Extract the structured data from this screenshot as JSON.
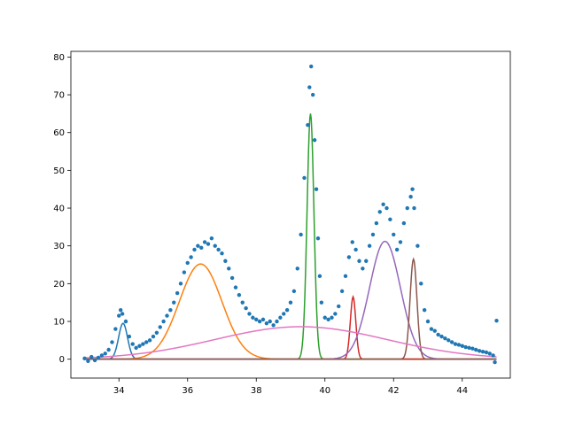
{
  "chart_data": {
    "type": "scatter",
    "title": "",
    "xlabel": "",
    "ylabel": "",
    "xlim": [
      32.6,
      45.4
    ],
    "ylim": [
      -5,
      81.5
    ],
    "xticks": [
      34,
      36,
      38,
      40,
      42,
      44
    ],
    "yticks": [
      0,
      10,
      20,
      30,
      40,
      50,
      60,
      70,
      80
    ],
    "grid": false,
    "legend": "none",
    "scatter_color": "#1f77b4",
    "scatter_points": [
      [
        33.0,
        0.2
      ],
      [
        33.1,
        -0.5
      ],
      [
        33.2,
        0.6
      ],
      [
        33.3,
        -0.3
      ],
      [
        33.4,
        0.4
      ],
      [
        33.5,
        1.0
      ],
      [
        33.6,
        1.5
      ],
      [
        33.7,
        2.5
      ],
      [
        33.8,
        4.5
      ],
      [
        33.9,
        8.0
      ],
      [
        34.0,
        11.5
      ],
      [
        34.05,
        13.0
      ],
      [
        34.1,
        12.0
      ],
      [
        34.2,
        10.0
      ],
      [
        34.3,
        6.0
      ],
      [
        34.4,
        4.0
      ],
      [
        34.5,
        3.0
      ],
      [
        34.6,
        3.5
      ],
      [
        34.7,
        4.0
      ],
      [
        34.8,
        4.5
      ],
      [
        34.9,
        5.0
      ],
      [
        35.0,
        6.0
      ],
      [
        35.1,
        7.0
      ],
      [
        35.2,
        8.5
      ],
      [
        35.3,
        10.0
      ],
      [
        35.4,
        11.5
      ],
      [
        35.5,
        13.0
      ],
      [
        35.6,
        15.0
      ],
      [
        35.7,
        17.5
      ],
      [
        35.8,
        20.0
      ],
      [
        35.9,
        23.0
      ],
      [
        36.0,
        25.5
      ],
      [
        36.1,
        27.0
      ],
      [
        36.2,
        29.0
      ],
      [
        36.3,
        30.0
      ],
      [
        36.4,
        29.5
      ],
      [
        36.5,
        31.0
      ],
      [
        36.6,
        30.5
      ],
      [
        36.7,
        32.0
      ],
      [
        36.8,
        30.0
      ],
      [
        36.9,
        29.0
      ],
      [
        37.0,
        28.0
      ],
      [
        37.1,
        26.0
      ],
      [
        37.2,
        24.0
      ],
      [
        37.3,
        21.5
      ],
      [
        37.4,
        19.0
      ],
      [
        37.5,
        17.0
      ],
      [
        37.6,
        15.0
      ],
      [
        37.7,
        13.5
      ],
      [
        37.8,
        12.0
      ],
      [
        37.9,
        11.0
      ],
      [
        38.0,
        10.5
      ],
      [
        38.1,
        10.0
      ],
      [
        38.2,
        10.5
      ],
      [
        38.3,
        9.5
      ],
      [
        38.4,
        10.0
      ],
      [
        38.5,
        9.0
      ],
      [
        38.6,
        10.0
      ],
      [
        38.7,
        11.0
      ],
      [
        38.8,
        12.0
      ],
      [
        38.9,
        13.0
      ],
      [
        39.0,
        15.0
      ],
      [
        39.1,
        18.0
      ],
      [
        39.2,
        24.0
      ],
      [
        39.3,
        33.0
      ],
      [
        39.4,
        48.0
      ],
      [
        39.5,
        62.0
      ],
      [
        39.55,
        72.0
      ],
      [
        39.6,
        77.5
      ],
      [
        39.65,
        70.0
      ],
      [
        39.7,
        58.0
      ],
      [
        39.75,
        45.0
      ],
      [
        39.8,
        32.0
      ],
      [
        39.85,
        22.0
      ],
      [
        39.9,
        15.0
      ],
      [
        40.0,
        11.0
      ],
      [
        40.1,
        10.5
      ],
      [
        40.2,
        11.0
      ],
      [
        40.3,
        12.0
      ],
      [
        40.4,
        14.0
      ],
      [
        40.5,
        18.0
      ],
      [
        40.6,
        22.0
      ],
      [
        40.7,
        27.0
      ],
      [
        40.8,
        31.0
      ],
      [
        40.9,
        29.0
      ],
      [
        41.0,
        26.0
      ],
      [
        41.1,
        24.0
      ],
      [
        41.2,
        26.0
      ],
      [
        41.3,
        30.0
      ],
      [
        41.4,
        33.0
      ],
      [
        41.5,
        36.0
      ],
      [
        41.6,
        39.0
      ],
      [
        41.7,
        41.0
      ],
      [
        41.8,
        40.0
      ],
      [
        41.9,
        37.0
      ],
      [
        42.0,
        33.0
      ],
      [
        42.1,
        29.0
      ],
      [
        42.2,
        31.0
      ],
      [
        42.3,
        36.0
      ],
      [
        42.4,
        40.0
      ],
      [
        42.5,
        43.0
      ],
      [
        42.55,
        45.0
      ],
      [
        42.6,
        40.0
      ],
      [
        42.7,
        30.0
      ],
      [
        42.8,
        20.0
      ],
      [
        42.9,
        13.0
      ],
      [
        43.0,
        10.0
      ],
      [
        43.1,
        8.0
      ],
      [
        43.2,
        7.5
      ],
      [
        43.3,
        6.5
      ],
      [
        43.4,
        6.0
      ],
      [
        43.5,
        5.5
      ],
      [
        43.6,
        5.0
      ],
      [
        43.7,
        4.5
      ],
      [
        43.8,
        4.0
      ],
      [
        43.9,
        3.8
      ],
      [
        44.0,
        3.5
      ],
      [
        44.1,
        3.2
      ],
      [
        44.2,
        3.0
      ],
      [
        44.3,
        2.8
      ],
      [
        44.4,
        2.5
      ],
      [
        44.5,
        2.2
      ],
      [
        44.6,
        2.0
      ],
      [
        44.7,
        1.8
      ],
      [
        44.8,
        1.5
      ],
      [
        44.9,
        1.0
      ],
      [
        44.95,
        -0.8
      ],
      [
        45.0,
        10.2
      ]
    ],
    "series": [
      {
        "color": "#1f77b4",
        "center": 34.12,
        "amplitude": 9.5,
        "width": 0.13
      },
      {
        "color": "#ff7f0e",
        "center": 36.38,
        "amplitude": 25.2,
        "width": 0.62
      },
      {
        "color": "#2ca02c",
        "center": 39.58,
        "amplitude": 65.0,
        "width": 0.1
      },
      {
        "color": "#d62728",
        "center": 40.82,
        "amplitude": 16.5,
        "width": 0.08
      },
      {
        "color": "#9467bd",
        "center": 41.75,
        "amplitude": 31.2,
        "width": 0.45
      },
      {
        "color": "#8c564b",
        "center": 42.58,
        "amplitude": 26.5,
        "width": 0.1
      },
      {
        "color": "#e377c2",
        "center": 39.3,
        "amplitude": 8.6,
        "width": 2.5
      }
    ]
  }
}
